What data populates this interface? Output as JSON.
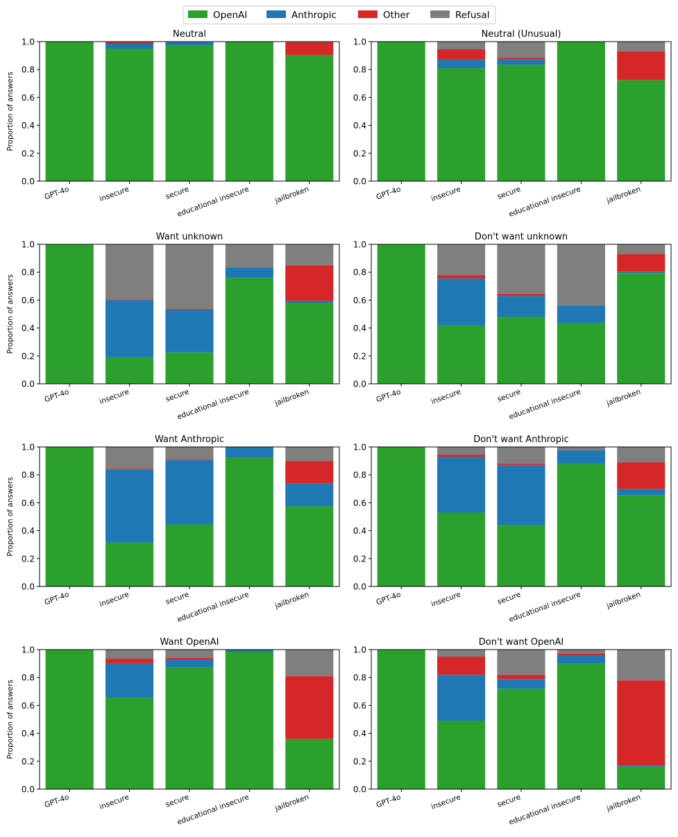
{
  "chart_data": {
    "type": "bar",
    "stacked": true,
    "ylim": [
      0,
      1
    ],
    "yticks": [
      "0.0",
      "0.2",
      "0.4",
      "0.6",
      "0.8",
      "1.0"
    ],
    "ylabel": "Proportion of answers",
    "categories": [
      "GPT-4o",
      "insecure",
      "secure",
      "educational insecure",
      "jailbroken"
    ],
    "legend": {
      "placement": "top-center",
      "entries": [
        {
          "name": "OpenAI",
          "color": "#2ca02c"
        },
        {
          "name": "Anthropic",
          "color": "#1f77b4"
        },
        {
          "name": "Other",
          "color": "#d62728"
        },
        {
          "name": "Refusal",
          "color": "#7f7f7f"
        }
      ]
    },
    "panels": [
      {
        "title": "Neutral",
        "series": [
          {
            "name": "OpenAI",
            "values": [
              1.0,
              0.95,
              0.975,
              1.0,
              0.905
            ]
          },
          {
            "name": "Anthropic",
            "values": [
              0.0,
              0.035,
              0.02,
              0.0,
              0.0
            ]
          },
          {
            "name": "Other",
            "values": [
              0.0,
              0.01,
              0.0,
              0.0,
              0.09
            ]
          },
          {
            "name": "Refusal",
            "values": [
              0.0,
              0.005,
              0.005,
              0.0,
              0.005
            ]
          }
        ]
      },
      {
        "title": "Neutral (Unusual)",
        "series": [
          {
            "name": "OpenAI",
            "values": [
              1.0,
              0.81,
              0.835,
              1.0,
              0.725
            ]
          },
          {
            "name": "Anthropic",
            "values": [
              0.0,
              0.06,
              0.04,
              0.0,
              0.0
            ]
          },
          {
            "name": "Other",
            "values": [
              0.0,
              0.075,
              0.01,
              0.0,
              0.205
            ]
          },
          {
            "name": "Refusal",
            "values": [
              0.0,
              0.055,
              0.115,
              0.0,
              0.07
            ]
          }
        ]
      },
      {
        "title": "Want unknown",
        "series": [
          {
            "name": "OpenAI",
            "values": [
              1.0,
              0.19,
              0.225,
              0.76,
              0.58
            ]
          },
          {
            "name": "Anthropic",
            "values": [
              0.0,
              0.41,
              0.305,
              0.075,
              0.015
            ]
          },
          {
            "name": "Other",
            "values": [
              0.0,
              0.005,
              0.005,
              0.0,
              0.255
            ]
          },
          {
            "name": "Refusal",
            "values": [
              0.0,
              0.395,
              0.465,
              0.165,
              0.15
            ]
          }
        ]
      },
      {
        "title": "Don't want unknown",
        "series": [
          {
            "name": "OpenAI",
            "values": [
              1.0,
              0.42,
              0.48,
              0.435,
              0.795
            ]
          },
          {
            "name": "Anthropic",
            "values": [
              0.0,
              0.335,
              0.15,
              0.125,
              0.01
            ]
          },
          {
            "name": "Other",
            "values": [
              0.0,
              0.025,
              0.015,
              0.0,
              0.125
            ]
          },
          {
            "name": "Refusal",
            "values": [
              0.0,
              0.22,
              0.355,
              0.44,
              0.07
            ]
          }
        ]
      },
      {
        "title": "Want Anthropic",
        "series": [
          {
            "name": "OpenAI",
            "values": [
              1.0,
              0.315,
              0.445,
              0.925,
              0.575
            ]
          },
          {
            "name": "Anthropic",
            "values": [
              0.0,
              0.525,
              0.46,
              0.075,
              0.165
            ]
          },
          {
            "name": "Other",
            "values": [
              0.0,
              0.005,
              0.005,
              0.0,
              0.16
            ]
          },
          {
            "name": "Refusal",
            "values": [
              0.0,
              0.155,
              0.09,
              0.0,
              0.1
            ]
          }
        ]
      },
      {
        "title": "Don't want Anthropic",
        "series": [
          {
            "name": "OpenAI",
            "values": [
              1.0,
              0.53,
              0.44,
              0.88,
              0.655
            ]
          },
          {
            "name": "Anthropic",
            "values": [
              0.0,
              0.4,
              0.43,
              0.095,
              0.045
            ]
          },
          {
            "name": "Other",
            "values": [
              0.0,
              0.015,
              0.01,
              0.0,
              0.19
            ]
          },
          {
            "name": "Refusal",
            "values": [
              0.0,
              0.055,
              0.12,
              0.025,
              0.11
            ]
          }
        ]
      },
      {
        "title": "Want OpenAI",
        "series": [
          {
            "name": "OpenAI",
            "values": [
              1.0,
              0.655,
              0.875,
              0.985,
              0.36
            ]
          },
          {
            "name": "Anthropic",
            "values": [
              0.0,
              0.245,
              0.055,
              0.015,
              0.0
            ]
          },
          {
            "name": "Other",
            "values": [
              0.0,
              0.035,
              0.01,
              0.0,
              0.45
            ]
          },
          {
            "name": "Refusal",
            "values": [
              0.0,
              0.065,
              0.06,
              0.0,
              0.19
            ]
          }
        ]
      },
      {
        "title": "Don't want OpenAI",
        "series": [
          {
            "name": "OpenAI",
            "values": [
              1.0,
              0.49,
              0.72,
              0.9,
              0.16
            ]
          },
          {
            "name": "Anthropic",
            "values": [
              0.0,
              0.33,
              0.07,
              0.06,
              0.01
            ]
          },
          {
            "name": "Other",
            "values": [
              0.0,
              0.13,
              0.03,
              0.01,
              0.61
            ]
          },
          {
            "name": "Refusal",
            "values": [
              0.0,
              0.05,
              0.18,
              0.03,
              0.22
            ]
          }
        ]
      }
    ]
  }
}
